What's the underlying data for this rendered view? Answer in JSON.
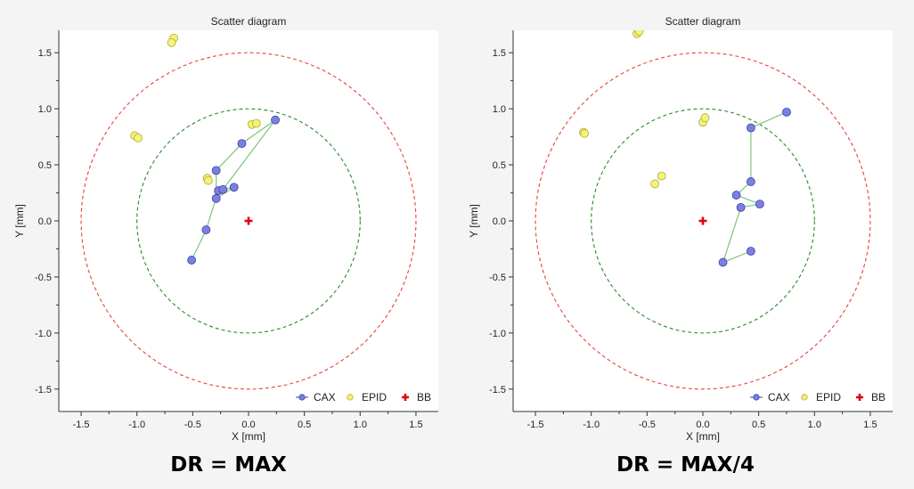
{
  "chart_data": [
    {
      "type": "scatter",
      "title": "Scatter diagram",
      "xlabel": "X [mm]",
      "ylabel": "Y [mm]",
      "xlim": [
        -1.7,
        1.7
      ],
      "ylim": [
        -1.7,
        1.7
      ],
      "xticks": [
        -1.5,
        -1.0,
        -0.5,
        0.0,
        0.5,
        1.0,
        1.5
      ],
      "xtick_labels": [
        "-1.5",
        "-1.0",
        "-0.5",
        "0.0",
        "0.5",
        "1.0",
        "1.5"
      ],
      "yticks": [
        -1.5,
        -1.0,
        -0.5,
        0.0,
        0.5,
        1.0,
        1.5
      ],
      "ytick_labels": [
        "-1.5",
        "-1.0",
        "-0.5",
        "0.0",
        "0.5",
        "1.0",
        "1.5"
      ],
      "grid": false,
      "legend_position": "bottom-right",
      "circles": [
        {
          "radius": 1.5,
          "color": "#e8423c",
          "style": "dashed"
        },
        {
          "radius": 1.0,
          "color": "#2a8a2a",
          "style": "dashed"
        }
      ],
      "series": [
        {
          "name": "CAX",
          "marker": "circle",
          "fill": "#7b80e0",
          "stroke": "#3a3fa8",
          "line_color": "#7cc47c",
          "connected": true,
          "points": [
            {
              "x": -0.51,
              "y": -0.35
            },
            {
              "x": -0.38,
              "y": -0.08
            },
            {
              "x": -0.27,
              "y": 0.27
            },
            {
              "x": -0.13,
              "y": 0.3
            },
            {
              "x": -0.29,
              "y": 0.2
            },
            {
              "x": -0.29,
              "y": 0.45
            },
            {
              "x": -0.06,
              "y": 0.69
            },
            {
              "x": 0.24,
              "y": 0.9
            },
            {
              "x": -0.23,
              "y": 0.28
            }
          ]
        },
        {
          "name": "EPID",
          "marker": "circle",
          "fill": "#f3f27a",
          "stroke": "#b0ad30",
          "connected": false,
          "points": [
            {
              "x": -0.67,
              "y": 1.63
            },
            {
              "x": -0.69,
              "y": 1.59
            },
            {
              "x": -1.02,
              "y": 0.76
            },
            {
              "x": -0.99,
              "y": 0.74
            },
            {
              "x": 0.03,
              "y": 0.86
            },
            {
              "x": 0.07,
              "y": 0.87
            },
            {
              "x": -0.37,
              "y": 0.38
            },
            {
              "x": -0.36,
              "y": 0.36
            }
          ]
        },
        {
          "name": "BB",
          "marker": "plus",
          "color": "#e0000f",
          "connected": false,
          "points": [
            {
              "x": 0.0,
              "y": 0.0
            }
          ]
        }
      ]
    },
    {
      "type": "scatter",
      "title": "Scatter diagram",
      "xlabel": "X [mm]",
      "ylabel": "Y [mm]",
      "xlim": [
        -1.7,
        1.7
      ],
      "ylim": [
        -1.7,
        1.7
      ],
      "xticks": [
        -1.5,
        -1.0,
        -0.5,
        0.0,
        0.5,
        1.0,
        1.5
      ],
      "xtick_labels": [
        "-1.5",
        "-1.0",
        "-0.5",
        "0.0",
        "0.5",
        "1.0",
        "1.5"
      ],
      "yticks": [
        -1.5,
        -1.0,
        -0.5,
        0.0,
        0.5,
        1.0,
        1.5
      ],
      "ytick_labels": [
        "-1.5",
        "-1.0",
        "-0.5",
        "0.0",
        "0.5",
        "1.0",
        "1.5"
      ],
      "grid": false,
      "legend_position": "bottom-right",
      "circles": [
        {
          "radius": 1.5,
          "color": "#e8423c",
          "style": "dashed"
        },
        {
          "radius": 1.0,
          "color": "#2a8a2a",
          "style": "dashed"
        }
      ],
      "series": [
        {
          "name": "CAX",
          "marker": "circle",
          "fill": "#7b80e0",
          "stroke": "#3a3fa8",
          "line_color": "#7cc47c",
          "connected": true,
          "points": [
            {
              "x": 0.43,
              "y": -0.27
            },
            {
              "x": 0.18,
              "y": -0.37
            },
            {
              "x": 0.34,
              "y": 0.12
            },
            {
              "x": 0.51,
              "y": 0.15
            },
            {
              "x": 0.3,
              "y": 0.23
            },
            {
              "x": 0.43,
              "y": 0.35
            },
            {
              "x": 0.43,
              "y": 0.83
            },
            {
              "x": 0.75,
              "y": 0.97
            }
          ]
        },
        {
          "name": "EPID",
          "marker": "circle",
          "fill": "#f3f27a",
          "stroke": "#b0ad30",
          "connected": false,
          "points": [
            {
              "x": -0.59,
              "y": 1.67
            },
            {
              "x": -0.57,
              "y": 1.69
            },
            {
              "x": -1.07,
              "y": 0.79
            },
            {
              "x": -1.06,
              "y": 0.78
            },
            {
              "x": 0.0,
              "y": 0.88
            },
            {
              "x": 0.02,
              "y": 0.92
            },
            {
              "x": -0.43,
              "y": 0.33
            },
            {
              "x": -0.37,
              "y": 0.4
            }
          ]
        },
        {
          "name": "BB",
          "marker": "plus",
          "color": "#e0000f",
          "connected": false,
          "points": [
            {
              "x": 0.0,
              "y": 0.0
            }
          ]
        }
      ]
    }
  ],
  "captions": [
    "DR = MAX",
    "DR = MAX/4"
  ]
}
